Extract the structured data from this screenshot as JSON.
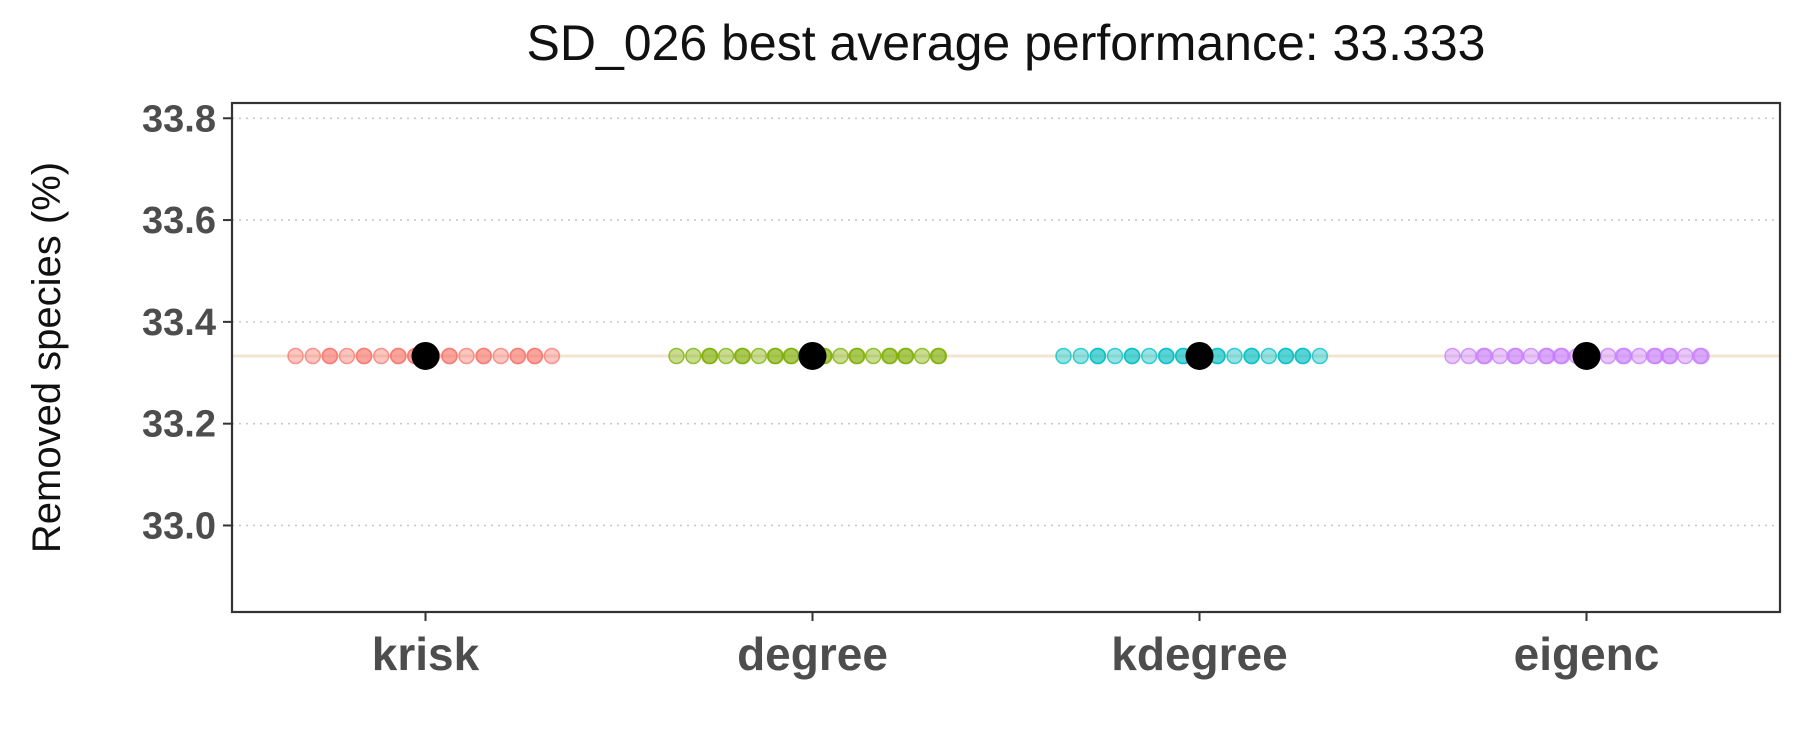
{
  "chart_data": {
    "type": "scatter",
    "title": "SD_026 best average performance: 33.333",
    "xlabel": "",
    "ylabel": "Removed species (%)",
    "categories": [
      "krisk",
      "degree",
      "kdegree",
      "eigenc"
    ],
    "ylim": [
      32.83,
      33.83
    ],
    "yticks": [
      "33.0",
      "33.2",
      "33.4",
      "33.6",
      "33.8"
    ],
    "reference_line": 33.333,
    "grid": "horizontal dotted",
    "series": [
      {
        "category": "krisk",
        "color": "#F8766D",
        "mean": 33.333,
        "values": [
          33.333,
          33.333,
          33.333,
          33.333,
          33.333,
          33.333,
          33.333,
          33.333,
          33.333,
          33.333,
          33.333,
          33.333,
          33.333,
          33.333,
          33.333,
          33.333,
          33.333,
          33.333,
          33.333,
          33.333,
          33.333,
          33.333,
          33.333,
          33.333
        ]
      },
      {
        "category": "degree",
        "color": "#7CAE00",
        "mean": 33.333,
        "values": [
          33.333,
          33.333,
          33.333,
          33.333,
          33.333,
          33.333,
          33.333,
          33.333,
          33.333,
          33.333,
          33.333,
          33.333,
          33.333,
          33.333,
          33.333,
          33.333,
          33.333,
          33.333,
          33.333,
          33.333,
          33.333,
          33.333,
          33.333,
          33.333,
          33.333,
          33.333
        ]
      },
      {
        "category": "kdegree",
        "color": "#00BFC4",
        "mean": 33.333,
        "values": [
          33.333,
          33.333,
          33.333,
          33.333,
          33.333,
          33.333,
          33.333,
          33.333,
          33.333,
          33.333,
          33.333,
          33.333,
          33.333,
          33.333,
          33.333,
          33.333,
          33.333,
          33.333,
          33.333,
          33.333,
          33.333,
          33.333,
          33.333,
          33.333
        ]
      },
      {
        "category": "eigenc",
        "color": "#C77CFF",
        "mean": 33.333,
        "values": [
          33.333,
          33.333,
          33.333,
          33.333,
          33.333,
          33.333,
          33.333,
          33.333,
          33.333,
          33.333,
          33.333,
          33.333,
          33.333,
          33.333,
          33.333,
          33.333,
          33.333,
          33.333,
          33.333,
          33.333,
          33.333,
          33.333,
          33.333,
          33.333,
          33.333,
          33.333
        ]
      }
    ],
    "colors": {
      "reference_line": "#F2E6D0",
      "mean_point": "#000000",
      "grid": "#c8c8c8",
      "panel_border": "#333333"
    }
  }
}
